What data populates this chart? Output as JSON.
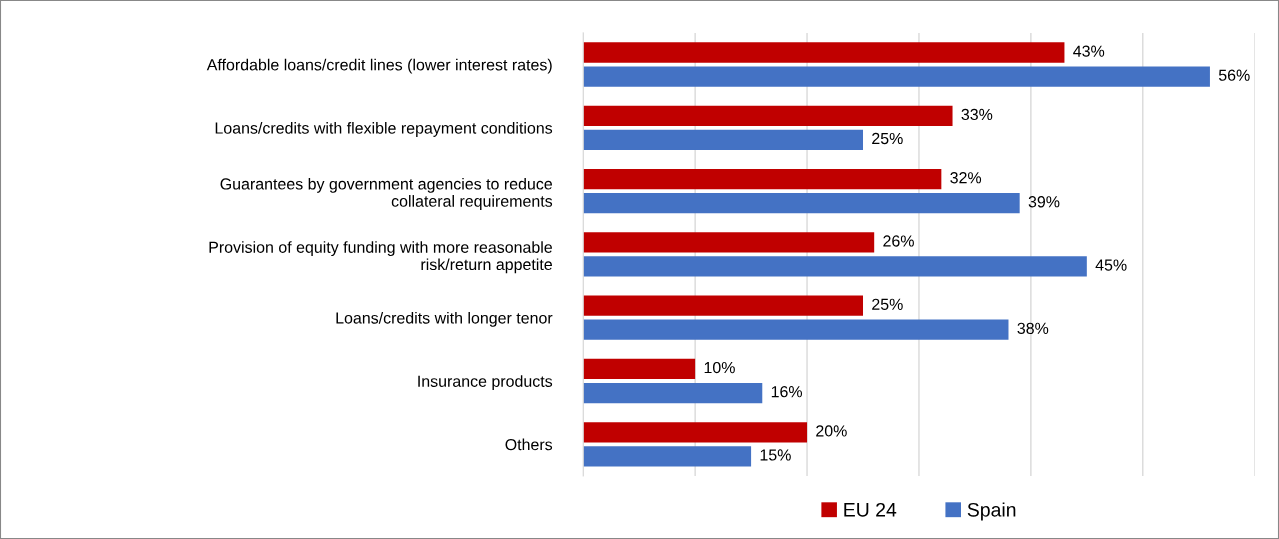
{
  "chart_data": {
    "type": "bar",
    "orientation": "horizontal",
    "categories": [
      "Affordable loans/credit lines (lower interest rates)",
      "Loans/credits with flexible repayment conditions",
      "Guarantees by government agencies to reduce\ncollateral requirements",
      "Provision of equity funding with more reasonable\nrisk/return appetite",
      "Loans/credits with longer tenor",
      "Insurance products",
      "Others"
    ],
    "series": [
      {
        "name": "EU 24",
        "color": "#c00000",
        "values": [
          43,
          33,
          32,
          26,
          25,
          10,
          20
        ],
        "value_labels": [
          "43%",
          "33%",
          "32%",
          "26%",
          "25%",
          "10%",
          "20%"
        ]
      },
      {
        "name": "Spain",
        "color": "#4472c4",
        "values": [
          56,
          25,
          39,
          45,
          38,
          16,
          15
        ],
        "value_labels": [
          "56%",
          "25%",
          "39%",
          "45%",
          "38%",
          "16%",
          "15%"
        ]
      }
    ],
    "xlim": [
      0,
      60
    ],
    "xticks": [
      {
        "value": 0,
        "label": null
      },
      {
        "value": 10,
        "label": null
      },
      {
        "value": 20,
        "label": null
      },
      {
        "value": 30,
        "label": null
      },
      {
        "value": 40,
        "label": null
      },
      {
        "value": 50,
        "label": null
      },
      {
        "value": 60,
        "label": null
      }
    ],
    "tick_labels": "y",
    "grid": "x",
    "legend": "bottom"
  }
}
